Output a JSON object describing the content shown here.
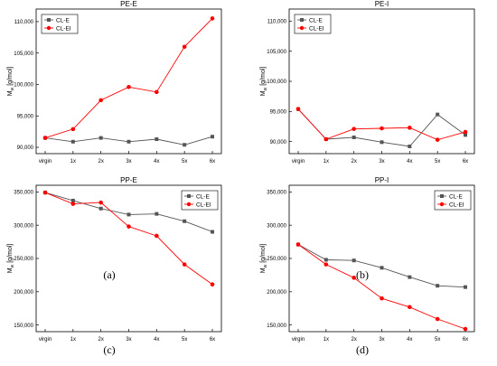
{
  "chart_data": [
    {
      "type": "line",
      "title": "PE-E",
      "panel_label": "(a)",
      "categories": [
        "virgin",
        "1x",
        "2x",
        "3x",
        "4x",
        "5x",
        "6x"
      ],
      "ylabel": "Mw [g/mol]",
      "ylim": [
        89000,
        112000
      ],
      "yticks": [
        90000,
        95000,
        100000,
        105000,
        110000
      ],
      "ytick_labels": [
        "90,000",
        "95,000",
        "100,000",
        "105,000",
        "110,000"
      ],
      "grid": false,
      "legend_position": "top-left",
      "series": [
        {
          "name": "CL-E",
          "color": "#555555",
          "marker": "square",
          "values": [
            91500,
            90900,
            91500,
            90900,
            91300,
            90400,
            91700
          ]
        },
        {
          "name": "CL-EI",
          "color": "#ff0000",
          "marker": "circle",
          "values": [
            91500,
            92900,
            97500,
            99600,
            98800,
            106000,
            110500
          ]
        }
      ]
    },
    {
      "type": "line",
      "title": "PE-I",
      "panel_label": "(b)",
      "categories": [
        "virgin",
        "1x",
        "2x",
        "3x",
        "4x",
        "5x",
        "6x"
      ],
      "ylabel": "Mw [g/mol]",
      "ylim": [
        88000,
        112000
      ],
      "yticks": [
        90000,
        95000,
        100000,
        105000,
        110000
      ],
      "ytick_labels": [
        "90,000",
        "95,000",
        "100,000",
        "105,000",
        "110,000"
      ],
      "grid": false,
      "legend_position": "top-left",
      "series": [
        {
          "name": "CL-E",
          "color": "#555555",
          "marker": "square",
          "values": [
            95400,
            90400,
            90700,
            89900,
            89200,
            94500,
            91100
          ]
        },
        {
          "name": "CL-EI",
          "color": "#ff0000",
          "marker": "circle",
          "values": [
            95400,
            90400,
            92100,
            92200,
            92300,
            90300,
            91600
          ]
        }
      ]
    },
    {
      "type": "line",
      "title": "PP-E",
      "panel_label": "(c)",
      "categories": [
        "virgin",
        "1x",
        "2x",
        "3x",
        "4x",
        "5x",
        "6x"
      ],
      "ylabel": "Mw [g/mol]",
      "ylim": [
        140000,
        360000
      ],
      "yticks": [
        150000,
        200000,
        250000,
        300000,
        350000
      ],
      "ytick_labels": [
        "150,000",
        "200,000",
        "250,000",
        "300,000",
        "350,000"
      ],
      "grid": false,
      "legend_position": "top-right",
      "series": [
        {
          "name": "CL-E",
          "color": "#555555",
          "marker": "square",
          "values": [
            349000,
            337000,
            325000,
            316000,
            317000,
            306000,
            290000
          ]
        },
        {
          "name": "CL-EI",
          "color": "#ff0000",
          "marker": "circle",
          "values": [
            349000,
            332000,
            334000,
            298000,
            284000,
            241000,
            211000
          ]
        }
      ]
    },
    {
      "type": "line",
      "title": "PP-I",
      "panel_label": "(d)",
      "categories": [
        "virgin",
        "1x",
        "2x",
        "3x",
        "4x",
        "5x",
        "6x"
      ],
      "ylabel": "Mw [g/mol]",
      "ylim": [
        140000,
        360000
      ],
      "yticks": [
        150000,
        200000,
        250000,
        300000,
        350000
      ],
      "ytick_labels": [
        "150,000",
        "200,000",
        "250,000",
        "300,000",
        "350,000"
      ],
      "grid": false,
      "legend_position": "top-right",
      "series": [
        {
          "name": "CL-E",
          "color": "#555555",
          "marker": "square",
          "values": [
            271000,
            248000,
            247000,
            236000,
            222000,
            209000,
            207000
          ]
        },
        {
          "name": "CL-EI",
          "color": "#ff0000",
          "marker": "circle",
          "values": [
            271000,
            241000,
            221000,
            190000,
            177000,
            159000,
            144000
          ]
        }
      ]
    }
  ]
}
